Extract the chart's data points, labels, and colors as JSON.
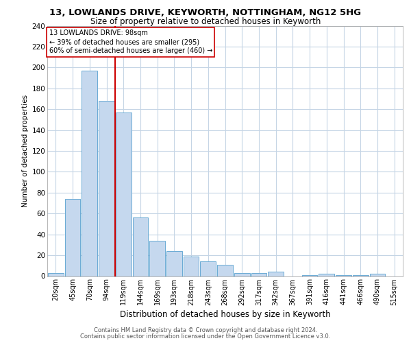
{
  "title1": "13, LOWLANDS DRIVE, KEYWORTH, NOTTINGHAM, NG12 5HG",
  "title2": "Size of property relative to detached houses in Keyworth",
  "xlabel": "Distribution of detached houses by size in Keyworth",
  "ylabel": "Number of detached properties",
  "bar_labels": [
    "20sqm",
    "45sqm",
    "70sqm",
    "94sqm",
    "119sqm",
    "144sqm",
    "169sqm",
    "193sqm",
    "218sqm",
    "243sqm",
    "268sqm",
    "292sqm",
    "317sqm",
    "342sqm",
    "367sqm",
    "391sqm",
    "416sqm",
    "441sqm",
    "466sqm",
    "490sqm",
    "515sqm"
  ],
  "bar_values": [
    3,
    74,
    197,
    168,
    157,
    56,
    34,
    24,
    19,
    14,
    11,
    3,
    3,
    4,
    0,
    1,
    2,
    1,
    1,
    2,
    0
  ],
  "bar_color": "#c5d8ee",
  "bar_edge_color": "#6aaad4",
  "property_line_label": "13 LOWLANDS DRIVE: 98sqm",
  "annotation_line1": "← 39% of detached houses are smaller (295)",
  "annotation_line2": "60% of semi-detached houses are larger (460) →",
  "red_color": "#cc0000",
  "footnote1": "Contains HM Land Registry data © Crown copyright and database right 2024.",
  "footnote2": "Contains public sector information licensed under the Open Government Licence v3.0.",
  "ylim": [
    0,
    240
  ],
  "yticks": [
    0,
    20,
    40,
    60,
    80,
    100,
    120,
    140,
    160,
    180,
    200,
    220,
    240
  ],
  "background_color": "#ffffff",
  "grid_color": "#c5d5e5",
  "title1_fontsize": 9.5,
  "title2_fontsize": 8.5,
  "xlabel_fontsize": 8.5,
  "ylabel_fontsize": 7.5,
  "tick_fontsize": 7,
  "annot_fontsize": 7,
  "footnote_fontsize": 6
}
